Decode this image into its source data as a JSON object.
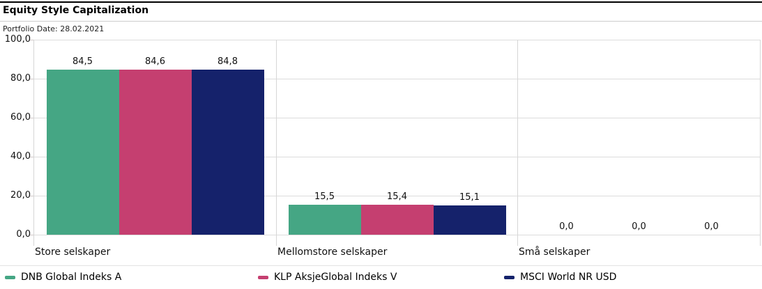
{
  "chart_data": {
    "type": "bar",
    "title": "Equity Style Capitalization",
    "subtitle": "Portfolio Date: 28.02.2021",
    "categories": [
      "Store selskaper",
      "Mellomstore selskaper",
      "Små selskaper"
    ],
    "series": [
      {
        "name": "DNB Global Indeks A",
        "color": "#45A684",
        "values": [
          84.5,
          15.5,
          0.0
        ],
        "value_labels": [
          "84,5",
          "15,5",
          "0,0"
        ]
      },
      {
        "name": "KLP AksjeGlobal Indeks V",
        "color": "#C53F70",
        "values": [
          84.6,
          15.4,
          0.0
        ],
        "value_labels": [
          "84,6",
          "15,4",
          "0,0"
        ]
      },
      {
        "name": "MSCI World NR USD",
        "color": "#15226B",
        "values": [
          84.8,
          15.1,
          0.0
        ],
        "value_labels": [
          "84,8",
          "15,1",
          "0,0"
        ]
      }
    ],
    "y_axis": {
      "min": 0,
      "max": 100,
      "tick_labels_top_to_bottom": [
        "100,0",
        "80,0",
        "60,0",
        "40,0",
        "20,0",
        "0,0"
      ]
    },
    "grid": true,
    "legend_position": "bottom"
  }
}
